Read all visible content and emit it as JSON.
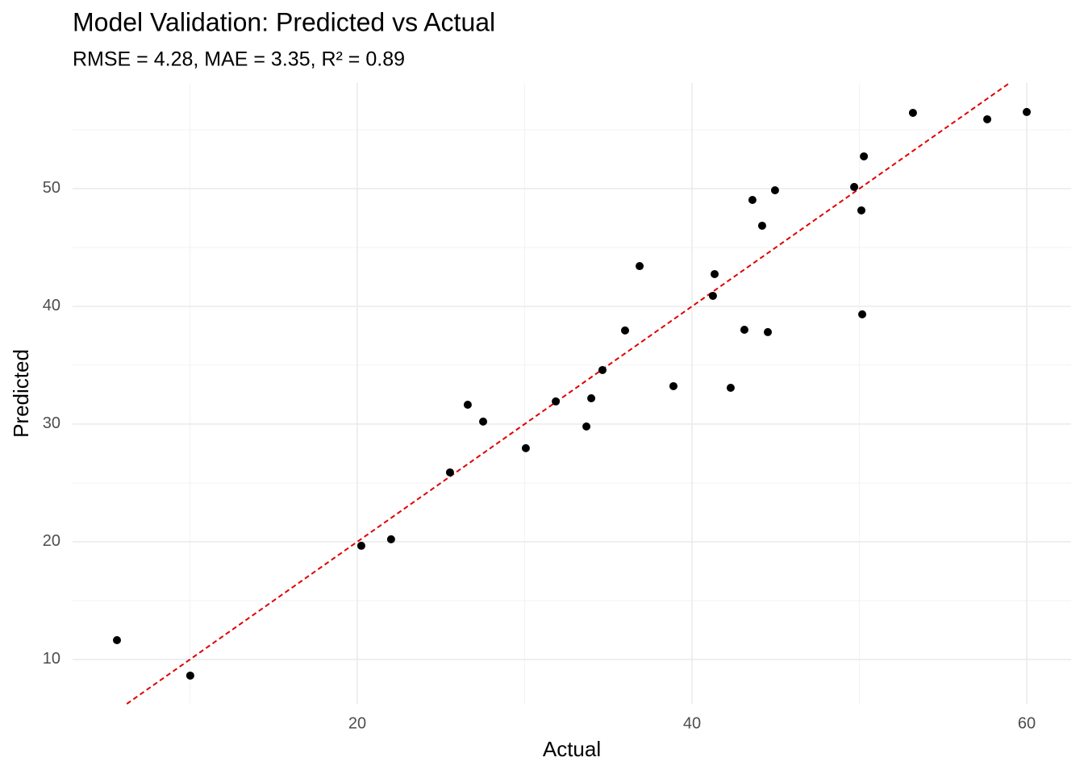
{
  "chart_data": {
    "type": "scatter",
    "title": "Model Validation: Predicted vs Actual",
    "subtitle": "RMSE = 4.28, MAE = 3.35, R² = 0.89",
    "x_label": "Actual",
    "y_label": "Predicted",
    "xlim": [
      2.99,
      62.65
    ],
    "ylim": [
      6.23,
      58.97
    ],
    "xticks": [
      20,
      40,
      60
    ],
    "yticks": [
      10,
      20,
      30,
      40,
      50
    ],
    "xminor": [
      10,
      30,
      50
    ],
    "yminor": [
      15,
      25,
      35,
      45,
      55
    ],
    "grid": true,
    "color": "#000000",
    "reference_line": {
      "slope": 1,
      "intercept": 0,
      "color": "#e00000"
    },
    "x": [
      5.64,
      10.02,
      20.24,
      22.02,
      25.54,
      26.6,
      27.52,
      30.07,
      31.86,
      33.69,
      33.98,
      34.65,
      36.0,
      36.87,
      38.89,
      41.25,
      41.35,
      42.31,
      43.13,
      43.61,
      44.19,
      44.53,
      44.96,
      49.69,
      50.12,
      50.17,
      50.27,
      53.2,
      57.64,
      60.0
    ],
    "values": [
      11.64,
      8.63,
      19.66,
      20.21,
      25.89,
      31.64,
      30.21,
      27.95,
      31.92,
      29.79,
      32.19,
      34.59,
      37.95,
      43.42,
      33.22,
      40.89,
      42.74,
      33.08,
      38.01,
      49.04,
      46.85,
      37.81,
      49.86,
      50.14,
      48.15,
      39.32,
      52.74,
      56.44,
      55.89,
      56.51
    ]
  }
}
